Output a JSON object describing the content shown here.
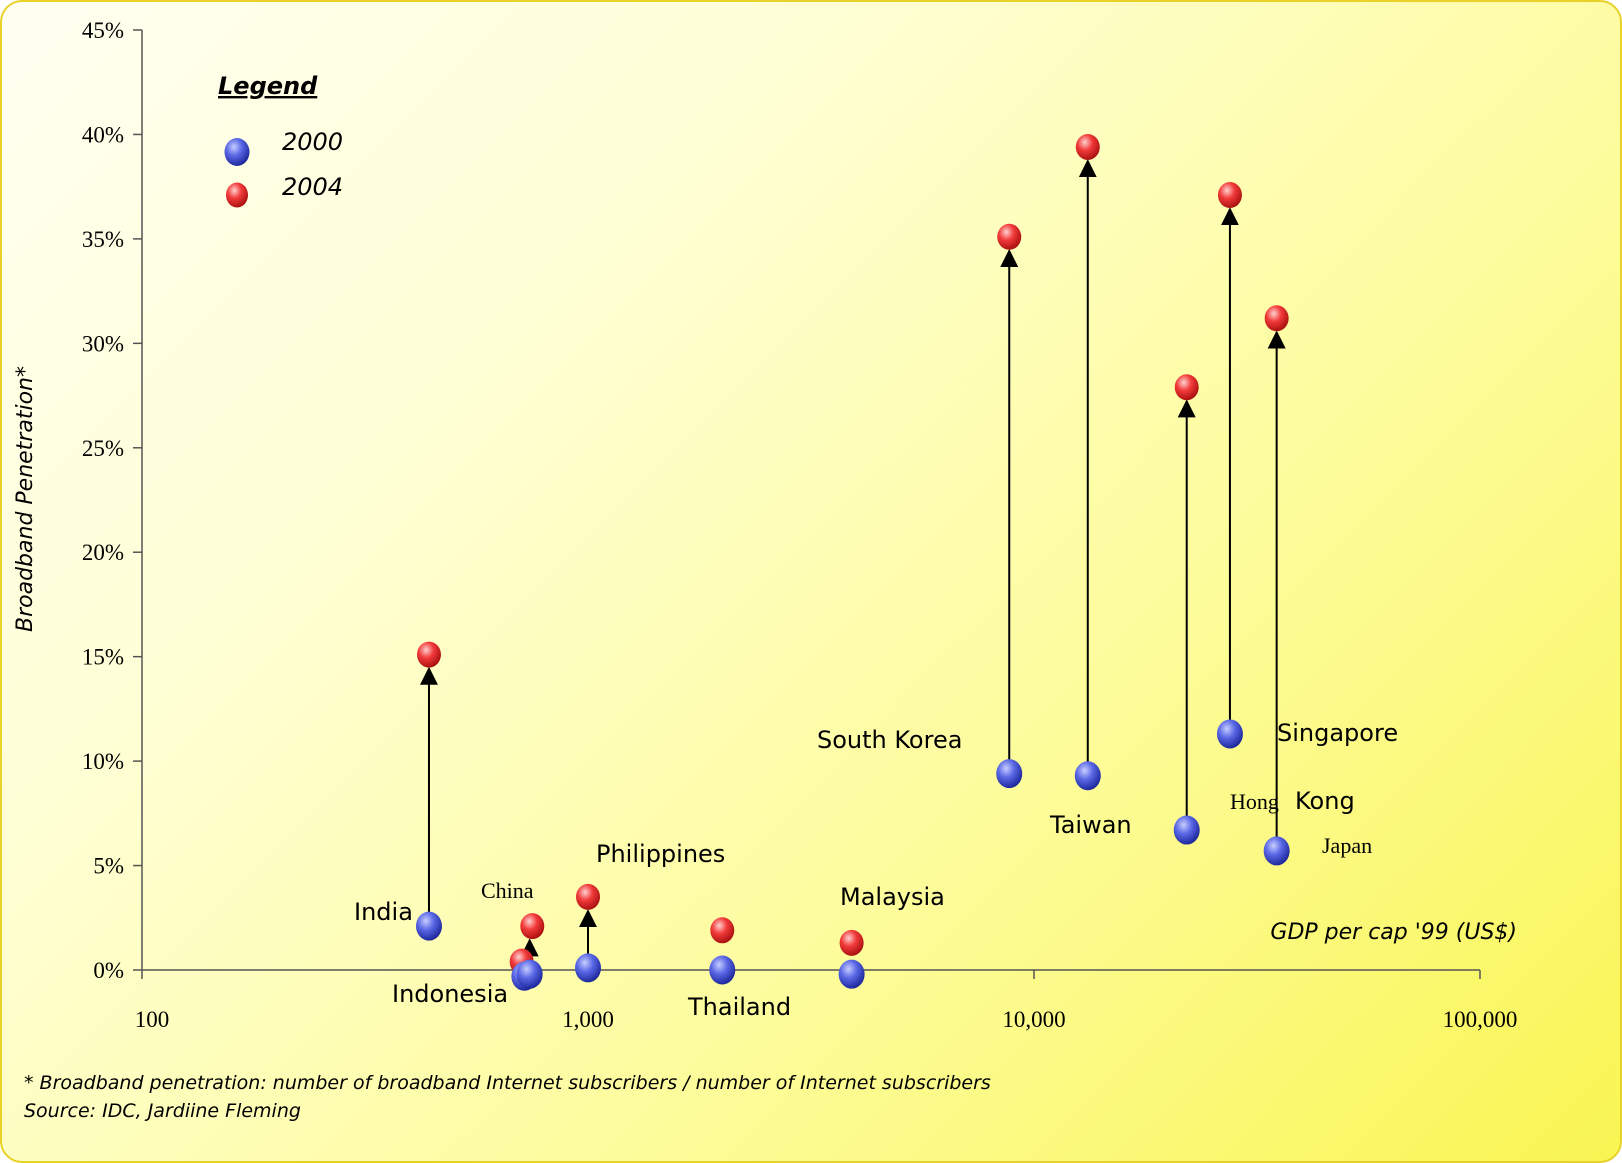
{
  "chart_data": {
    "type": "scatter",
    "title": "",
    "xlabel": "GDP per cap '99 (US$)",
    "ylabel": "Broadband Penetration*",
    "x_scale": "log",
    "xlim": [
      100,
      100000
    ],
    "ylim": [
      0,
      45
    ],
    "x_ticks": [
      "100",
      "1,000",
      "10,000",
      "100,000"
    ],
    "y_ticks": [
      "0%",
      "5%",
      "10%",
      "15%",
      "20%",
      "25%",
      "30%",
      "35%",
      "40%",
      "45%"
    ],
    "legend": {
      "title": "Legend",
      "placement": "top-left",
      "items": [
        {
          "label": "2000",
          "color": "#3344cc"
        },
        {
          "label": "2004",
          "color": "#ee2222"
        }
      ]
    },
    "series": [
      {
        "name": "2000",
        "color": "#3344cc",
        "points": [
          {
            "label": "India",
            "x": 440,
            "y": 2.1
          },
          {
            "label": "Indonesia",
            "x": 720,
            "y": -0.3
          },
          {
            "label": "China",
            "x": 740,
            "y": -0.2
          },
          {
            "label": "Philippines",
            "x": 1000,
            "y": 0.1
          },
          {
            "label": "Thailand",
            "x": 2000,
            "y": 0.0
          },
          {
            "label": "Malaysia",
            "x": 3900,
            "y": -0.2
          },
          {
            "label": "South Korea",
            "x": 8800,
            "y": 9.4
          },
          {
            "label": "Taiwan",
            "x": 13200,
            "y": 9.3
          },
          {
            "label": "Hong Kong",
            "x": 22000,
            "y": 6.7
          },
          {
            "label": "Singapore",
            "x": 27500,
            "y": 11.3
          },
          {
            "label": "Japan",
            "x": 35000,
            "y": 5.7
          }
        ]
      },
      {
        "name": "2004",
        "color": "#ee2222",
        "points": [
          {
            "label": "India",
            "x": 440,
            "y": 15.1
          },
          {
            "label": "Indonesia",
            "x": 710,
            "y": 0.4
          },
          {
            "label": "China",
            "x": 750,
            "y": 2.1
          },
          {
            "label": "Philippines",
            "x": 1000,
            "y": 3.5
          },
          {
            "label": "Thailand",
            "x": 2000,
            "y": 1.9
          },
          {
            "label": "Malaysia",
            "x": 3900,
            "y": 1.3
          },
          {
            "label": "South Korea",
            "x": 8800,
            "y": 35.1
          },
          {
            "label": "Taiwan",
            "x": 13200,
            "y": 39.4
          },
          {
            "label": "Hong Kong",
            "x": 22000,
            "y": 27.9
          },
          {
            "label": "Singapore",
            "x": 27500,
            "y": 37.1
          },
          {
            "label": "Japan",
            "x": 35000,
            "y": 31.2
          }
        ]
      }
    ],
    "arrows": [
      "India",
      "China",
      "Philippines",
      "South Korea",
      "Taiwan",
      "Hong Kong",
      "Singapore",
      "Japan"
    ]
  },
  "country_labels": {
    "india": "India",
    "indonesia": "Indonesia",
    "china": "China",
    "philippines": "Philippines",
    "thailand": "Thailand",
    "malaysia": "Malaysia",
    "south_korea": "South Korea",
    "taiwan": "Taiwan",
    "hong": "Hong",
    "kong": "Kong",
    "singapore": "Singapore",
    "japan": "Japan"
  },
  "footnotes": {
    "definition": "* Broadband penetration: number of broadband Internet subscribers / number of Internet subscribers",
    "source": "Source: IDC, Jardiine Fleming"
  }
}
